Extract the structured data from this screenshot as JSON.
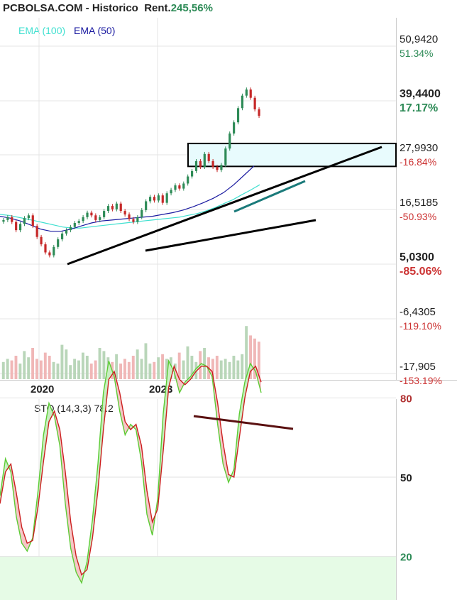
{
  "header": {
    "site": "PCBOLSA.COM - Historico",
    "rent_label": "Rent.",
    "rent_value": "245,56%"
  },
  "legend": {
    "ema100": "EMA (100)",
    "ema50": "EMA (50)",
    "ema100_color": "#40e0d0",
    "ema50_color": "#1a1aa0"
  },
  "chart_data": [
    {
      "type": "candlestick",
      "title": "",
      "x_tick_labels": [
        "2020",
        "2023"
      ],
      "y_scale": "log",
      "y_levels": [
        {
          "price": "50,9420",
          "pct": "51.34%",
          "pct_color": "#2e8b57",
          "bold": false
        },
        {
          "price": "39,4400",
          "pct": "17.17%",
          "pct_color": "#2e8b57",
          "bold": true
        },
        {
          "price": "27,9930",
          "pct": "-16.84%",
          "pct_color": "#cc3333",
          "bold": false
        },
        {
          "price": "16,5185",
          "pct": "-50.93%",
          "pct_color": "#cc3333",
          "bold": false
        },
        {
          "price": "5,0300",
          "pct": "-85.06%",
          "pct_color": "#cc3333",
          "bold": true
        },
        {
          "price": "-6,4305",
          "pct": "-119.10%",
          "pct_color": "#cc3333",
          "bold": false
        },
        {
          "price": "-17,905",
          "pct": "-153.19%",
          "pct_color": "#cc3333",
          "bold": false
        }
      ],
      "price_series": [
        8.6,
        8.9,
        8.4,
        7.6,
        8.2,
        8.8,
        9.1,
        8.0,
        7.0,
        6.4,
        5.8,
        5.6,
        6.2,
        6.8,
        7.3,
        7.6,
        7.9,
        8.3,
        8.5,
        8.9,
        9.4,
        9.1,
        8.6,
        8.9,
        9.6,
        10.2,
        9.8,
        10.5,
        9.6,
        9.2,
        8.7,
        8.4,
        8.9,
        9.7,
        10.8,
        11.4,
        10.9,
        11.6,
        10.6,
        11.9,
        12.4,
        13.1,
        12.6,
        13.4,
        14.6,
        15.6,
        17.6,
        16.4,
        19.2,
        17.6,
        16.4,
        15.8,
        16.8,
        20.5,
        24.6,
        28.2,
        33.5,
        39.0,
        42.0,
        38.0,
        33.0,
        30.5
      ],
      "ema100": [
        9.2,
        9.1,
        8.9,
        8.7,
        8.5,
        8.3,
        8.1,
        7.9,
        7.8,
        7.8,
        7.9,
        8.0,
        8.1,
        8.2,
        8.3,
        8.4,
        8.5,
        8.6,
        8.7,
        8.8,
        8.9,
        9.1,
        9.3,
        9.6,
        10.0,
        10.5,
        11.0,
        11.7,
        12.4,
        13.2
      ],
      "ema50": [
        9.0,
        8.8,
        8.5,
        8.1,
        7.7,
        7.5,
        7.5,
        7.7,
        8.0,
        8.3,
        8.5,
        8.6,
        8.7,
        8.8,
        8.9,
        9.0,
        9.2,
        9.4,
        9.7,
        10.1,
        10.6,
        11.2,
        12.0,
        13.2,
        14.8,
        16.6
      ],
      "support_lines": [
        {
          "from": [
            "2020-04",
            5.7
          ],
          "to": [
            "2025-09",
            29.5
          ]
        },
        {
          "from": [
            "2022-03",
            7.1
          ],
          "to": [
            "2025-09",
            12.9
          ]
        }
      ],
      "highlight_zone": {
        "from": "2023-11",
        "to": "end",
        "low": 16.5,
        "high": 21.8
      },
      "volume": [
        22,
        26,
        24,
        30,
        20,
        36,
        28,
        40,
        26,
        24,
        34,
        30,
        22,
        20,
        44,
        38,
        18,
        26,
        24,
        34,
        30,
        20,
        24,
        40,
        36,
        28,
        22,
        32,
        20,
        26,
        22,
        30,
        38,
        26,
        46,
        20,
        22,
        28,
        32,
        26,
        28,
        20,
        34,
        24,
        42,
        30,
        22,
        36,
        40,
        28,
        26,
        30,
        24,
        26,
        22,
        30,
        24,
        32,
        68,
        56,
        52,
        48
      ]
    },
    {
      "type": "line",
      "title": "STO (14,3,3) 78.2",
      "y_levels": [
        "80",
        "50",
        "20"
      ],
      "band_colors": {
        "overbought": "#fde4e4",
        "oversold": "#e6fbe6"
      },
      "k_line": [
        43,
        57,
        52,
        35,
        25,
        22,
        27,
        45,
        66,
        78,
        73,
        62,
        40,
        23,
        14,
        10,
        18,
        34,
        55,
        82,
        94,
        88,
        75,
        66,
        70,
        68,
        56,
        36,
        28,
        42,
        74,
        94,
        90,
        82,
        86,
        88,
        91,
        93,
        92,
        88,
        70,
        55,
        48,
        53,
        74,
        86,
        93,
        90,
        82
      ],
      "d_line": [
        40,
        52,
        55,
        44,
        31,
        25,
        26,
        39,
        56,
        71,
        75,
        68,
        52,
        33,
        20,
        13,
        15,
        27,
        45,
        68,
        87,
        90,
        82,
        71,
        68,
        70,
        62,
        45,
        33,
        38,
        60,
        84,
        92,
        87,
        85,
        87,
        90,
        92,
        92,
        90,
        78,
        63,
        51,
        50,
        65,
        80,
        90,
        92,
        86
      ],
      "divergence_line": {
        "from": [
          8,
          97
        ],
        "to": [
          9.8,
          91
        ]
      }
    }
  ]
}
